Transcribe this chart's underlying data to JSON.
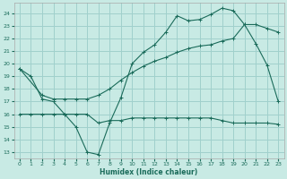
{
  "xlabel": "Humidex (Indice chaleur)",
  "bg_color": "#c8eae4",
  "grid_color": "#a0d0cc",
  "line_color": "#1a6b5a",
  "xlim": [
    -0.5,
    23.5
  ],
  "ylim": [
    12.5,
    24.8
  ],
  "xticks": [
    0,
    1,
    2,
    3,
    4,
    5,
    6,
    7,
    8,
    9,
    10,
    11,
    12,
    13,
    14,
    15,
    16,
    17,
    18,
    19,
    20,
    21,
    22,
    23
  ],
  "yticks": [
    13,
    14,
    15,
    16,
    17,
    18,
    19,
    20,
    21,
    22,
    23,
    24
  ],
  "curve1_x": [
    0,
    1,
    2,
    3,
    4,
    5,
    6,
    7,
    8,
    9,
    10,
    11,
    12,
    13,
    14,
    15,
    16,
    17,
    18,
    19,
    20,
    21,
    22,
    23
  ],
  "curve1_y": [
    19.6,
    19.0,
    17.2,
    17.0,
    16.0,
    15.0,
    13.0,
    12.8,
    15.3,
    17.3,
    20.0,
    20.9,
    21.5,
    22.5,
    23.8,
    23.4,
    23.5,
    23.9,
    24.4,
    24.2,
    23.1,
    21.6,
    19.9,
    17.0
  ],
  "curve2_x": [
    0,
    2,
    3,
    4,
    5,
    6,
    7,
    8,
    9,
    10,
    11,
    12,
    13,
    14,
    15,
    16,
    17,
    18,
    19,
    20,
    21,
    22,
    23
  ],
  "curve2_y": [
    19.6,
    17.5,
    17.2,
    17.2,
    17.2,
    17.2,
    17.5,
    18.0,
    18.7,
    19.3,
    19.8,
    20.2,
    20.5,
    20.9,
    21.2,
    21.4,
    21.5,
    21.8,
    22.0,
    23.1,
    23.1,
    22.8,
    22.5
  ],
  "curve3_x": [
    0,
    1,
    2,
    3,
    4,
    5,
    6,
    7,
    8,
    9,
    10,
    11,
    12,
    13,
    14,
    15,
    16,
    17,
    18,
    19,
    20,
    21,
    22,
    23
  ],
  "curve3_y": [
    16.0,
    16.0,
    16.0,
    16.0,
    16.0,
    16.0,
    16.0,
    15.3,
    15.5,
    15.5,
    15.7,
    15.7,
    15.7,
    15.7,
    15.7,
    15.7,
    15.7,
    15.7,
    15.5,
    15.3,
    15.3,
    15.3,
    15.3,
    15.2
  ]
}
